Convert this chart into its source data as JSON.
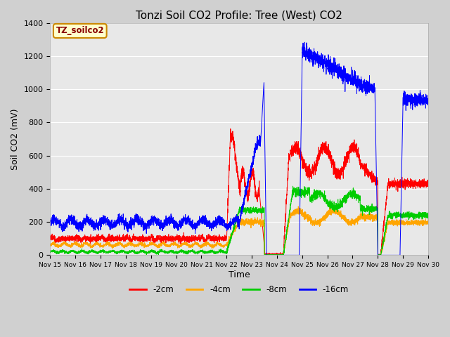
{
  "title": "Tonzi Soil CO2 Profile: Tree (West) CO2",
  "ylabel": "Soil CO2 (mV)",
  "xlabel": "Time",
  "ylim": [
    0,
    1400
  ],
  "annotation": "TZ_soilco2",
  "legend_labels": [
    "-2cm",
    "-4cm",
    "-8cm",
    "-16cm"
  ],
  "legend_colors": [
    "#ff0000",
    "#ffa500",
    "#00cc00",
    "#0000ff"
  ],
  "bg_color": "#d8d8d8",
  "plot_bg_color": "#e8e8e8",
  "xtick_labels": [
    "Nov 15",
    "Nov 16",
    "Nov 17",
    "Nov 18",
    "Nov 19",
    "Nov 20",
    "Nov 21",
    "Nov 22",
    "Nov 23",
    "Nov 24",
    "Nov 25",
    "Nov 26",
    "Nov 27",
    "Nov 28",
    "Nov 29",
    "Nov 30"
  ],
  "grid_color": "#ffffff",
  "title_fontsize": 11,
  "label_fontsize": 9,
  "annot_text_color": "#880000",
  "annot_face_color": "#ffffcc",
  "annot_edge_color": "#cc8800"
}
